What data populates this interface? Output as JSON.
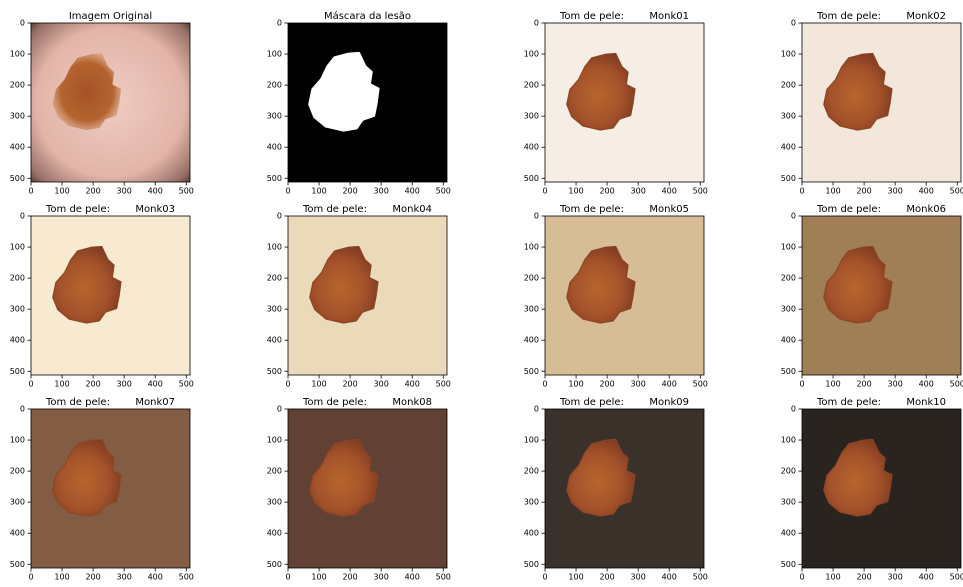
{
  "chart_data": [
    {
      "type": "image",
      "title": "Imagem Original",
      "background": "#e6bcb0",
      "vignette": true,
      "xlim": [
        0,
        512
      ],
      "ylim": [
        512,
        0
      ],
      "xticks": [
        0,
        100,
        200,
        300,
        400,
        500
      ],
      "yticks": [
        0,
        100,
        200,
        300,
        400,
        500
      ]
    },
    {
      "type": "image",
      "title": "Máscara da lesão",
      "background": "#000000",
      "mask_color": "#ffffff",
      "xlim": [
        0,
        512
      ],
      "ylim": [
        512,
        0
      ],
      "xticks": [
        0,
        100,
        200,
        300,
        400,
        500
      ],
      "yticks": [
        0,
        100,
        200,
        300,
        400,
        500
      ]
    },
    {
      "type": "image",
      "title": "Tom de pele:        Monk01",
      "background": "#f6ede4",
      "xlim": [
        0,
        512
      ],
      "ylim": [
        512,
        0
      ],
      "xticks": [
        0,
        100,
        200,
        300,
        400,
        500
      ],
      "yticks": [
        0,
        100,
        200,
        300,
        400,
        500
      ]
    },
    {
      "type": "image",
      "title": "Tom de pele:        Monk02",
      "background": "#f3e7db",
      "xlim": [
        0,
        512
      ],
      "ylim": [
        512,
        0
      ],
      "xticks": [
        0,
        100,
        200,
        300,
        400,
        500
      ],
      "yticks": [
        0,
        100,
        200,
        300,
        400,
        500
      ]
    },
    {
      "type": "image",
      "title": "Tom de pele:        Monk03",
      "background": "#f7ead0",
      "xlim": [
        0,
        512
      ],
      "ylim": [
        512,
        0
      ],
      "xticks": [
        0,
        100,
        200,
        300,
        400,
        500
      ],
      "yticks": [
        0,
        100,
        200,
        300,
        400,
        500
      ]
    },
    {
      "type": "image",
      "title": "Tom de pele:        Monk04",
      "background": "#eadaba",
      "xlim": [
        0,
        512
      ],
      "ylim": [
        512,
        0
      ],
      "xticks": [
        0,
        100,
        200,
        300,
        400,
        500
      ],
      "yticks": [
        0,
        100,
        200,
        300,
        400,
        500
      ]
    },
    {
      "type": "image",
      "title": "Tom de pele:        Monk05",
      "background": "#d7bd96",
      "xlim": [
        0,
        512
      ],
      "ylim": [
        512,
        0
      ],
      "xticks": [
        0,
        100,
        200,
        300,
        400,
        500
      ],
      "yticks": [
        0,
        100,
        200,
        300,
        400,
        500
      ]
    },
    {
      "type": "image",
      "title": "Tom de pele:        Monk06",
      "background": "#a07e56",
      "xlim": [
        0,
        512
      ],
      "ylim": [
        512,
        0
      ],
      "xticks": [
        0,
        100,
        200,
        300,
        400,
        500
      ],
      "yticks": [
        0,
        100,
        200,
        300,
        400,
        500
      ]
    },
    {
      "type": "image",
      "title": "Tom de pele:        Monk07",
      "background": "#825c43",
      "xlim": [
        0,
        512
      ],
      "ylim": [
        512,
        0
      ],
      "xticks": [
        0,
        100,
        200,
        300,
        400,
        500
      ],
      "yticks": [
        0,
        100,
        200,
        300,
        400,
        500
      ]
    },
    {
      "type": "image",
      "title": "Tom de pele:        Monk08",
      "background": "#604134",
      "xlim": [
        0,
        512
      ],
      "ylim": [
        512,
        0
      ],
      "xticks": [
        0,
        100,
        200,
        300,
        400,
        500
      ],
      "yticks": [
        0,
        100,
        200,
        300,
        400,
        500
      ]
    },
    {
      "type": "image",
      "title": "Tom de pele:        Monk09",
      "background": "#3a312a",
      "xlim": [
        0,
        512
      ],
      "ylim": [
        512,
        0
      ],
      "xticks": [
        0,
        100,
        200,
        300,
        400,
        500
      ],
      "yticks": [
        0,
        100,
        200,
        300,
        400,
        500
      ]
    },
    {
      "type": "image",
      "title": "Tom de pele:        Monk10",
      "background": "#292420",
      "xlim": [
        0,
        512
      ],
      "ylim": [
        512,
        0
      ],
      "xticks": [
        0,
        100,
        200,
        300,
        400,
        500
      ],
      "yticks": [
        0,
        100,
        200,
        300,
        400,
        500
      ]
    }
  ]
}
